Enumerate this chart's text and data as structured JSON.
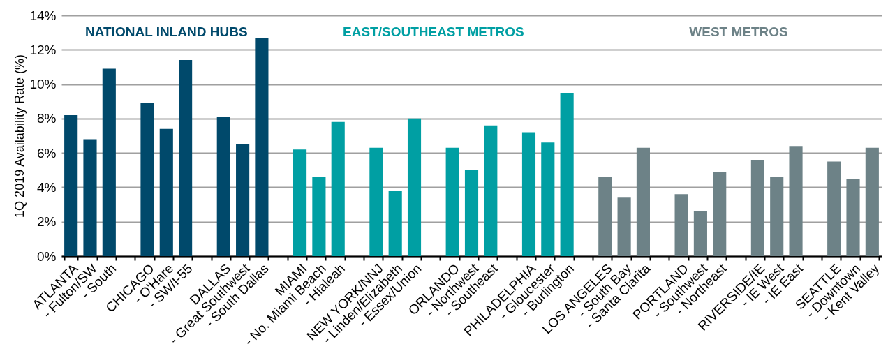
{
  "chart_data": {
    "type": "bar",
    "ylabel": "1Q 2019 Availability Rate (%)",
    "categories": [
      "ATLANTA",
      "- Fulton/SW",
      "- South",
      null,
      "CHICAGO",
      "- O'Hare",
      "- SW/I-55",
      null,
      "DALLAS",
      "- Great Southwest",
      "- South Dallas",
      null,
      "MIAMI",
      "- No. Miami Beach",
      "- Hialeah",
      null,
      "NEW YORK/NNJ",
      "- Linden/Elizabeth",
      "- Essex/Union",
      null,
      "ORLANDO",
      "- Northwest",
      "- Southeast",
      null,
      "PHILADELPHIA",
      "- Gloucester",
      "- Burlington",
      null,
      "LOS ANGELES",
      "- South Bay",
      "- Santa Clarita",
      null,
      "PORTLAND",
      "- Southwest",
      "- Northeast",
      null,
      "RIVERSIDE/IE",
      "- IE West",
      "- IE East",
      null,
      "SEATTLE",
      "- Downtown",
      "- Kent Valley"
    ],
    "series": [
      {
        "name": "NATIONAL INLAND HUBS",
        "color": "#00496b",
        "values": [
          8.2,
          6.8,
          10.9,
          null,
          8.9,
          7.4,
          11.4,
          null,
          8.1,
          6.5,
          12.7,
          null,
          null,
          null,
          null,
          null,
          null,
          null,
          null,
          null,
          null,
          null,
          null,
          null,
          null,
          null,
          null,
          null,
          null,
          null,
          null,
          null,
          null,
          null,
          null,
          null,
          null,
          null,
          null,
          null,
          null,
          null,
          null
        ]
      },
      {
        "name": "EAST/SOUTHEAST METROS",
        "color": "#009fa3",
        "values": [
          null,
          null,
          null,
          null,
          null,
          null,
          null,
          null,
          null,
          null,
          null,
          null,
          6.2,
          4.6,
          7.8,
          null,
          6.3,
          3.8,
          8.0,
          null,
          6.3,
          5.0,
          7.6,
          null,
          7.2,
          6.6,
          9.5,
          null,
          null,
          null,
          null,
          null,
          null,
          null,
          null,
          null,
          null,
          null,
          null,
          null,
          null,
          null,
          null
        ]
      },
      {
        "name": "WEST METROS",
        "color": "#6d8287",
        "values": [
          null,
          null,
          null,
          null,
          null,
          null,
          null,
          null,
          null,
          null,
          null,
          null,
          null,
          null,
          null,
          null,
          null,
          null,
          null,
          null,
          null,
          null,
          null,
          null,
          null,
          null,
          null,
          null,
          4.6,
          3.4,
          6.3,
          null,
          3.6,
          2.6,
          4.9,
          null,
          5.6,
          4.6,
          6.4,
          null,
          5.5,
          4.5,
          6.3
        ]
      }
    ],
    "ylim": [
      0,
      14
    ],
    "yticks": [
      {
        "value": 0,
        "label": "0%"
      },
      {
        "value": 2,
        "label": "2%"
      },
      {
        "value": 4,
        "label": "4%"
      },
      {
        "value": 6,
        "label": "6%"
      },
      {
        "value": 8,
        "label": "8%"
      },
      {
        "value": 10,
        "label": "10%"
      },
      {
        "value": 12,
        "label": "12%"
      },
      {
        "value": 14,
        "label": "14%"
      }
    ],
    "grid": "y"
  }
}
